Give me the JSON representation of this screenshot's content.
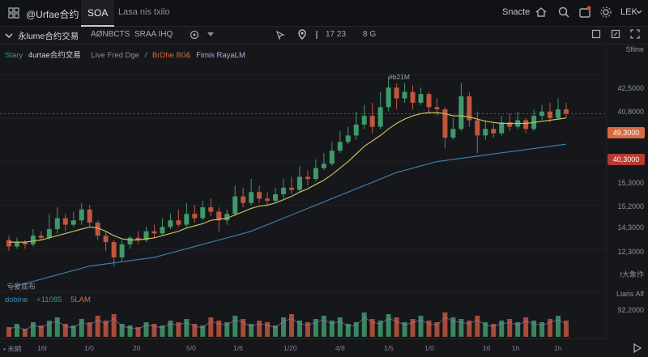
{
  "topbar": {
    "brand": "@Urfae合约",
    "active_tab": "SOA",
    "inactive_tab": "Lasa nis txilo",
    "right_label": "Snacte",
    "user": "LEK"
  },
  "toolbar": {
    "pair": "永lume合约交易",
    "item1": "AØNBCTS",
    "item2": "SRAA IHQ",
    "timer": "17 23",
    "timer2": "8 G"
  },
  "legend": {
    "l1": "Stary",
    "l2": "4urtae合约交易",
    "l3": "Live Fred Dge",
    "sep": "/",
    "l4": "BrDhe B0&",
    "l5": "Fimis RayaLM"
  },
  "price_axis": {
    "top_label": "Sfiine",
    "labels": [
      "42,5000",
      "40,8000",
      "15,3000",
      "15,2000",
      "14,3000",
      "12,3000"
    ],
    "current_price": "49,3000",
    "second_price": "40,3000",
    "note1": "Ⅰ大象作",
    "note2": "Liaris Alf",
    "note3": "92,2000",
    "current_color": "#d9693e",
    "second_color": "#b83a33"
  },
  "chart_data": {
    "type": "candlestick",
    "up_color": "#3f9a6b",
    "down_color": "#c0563d",
    "ma_fast_color": "#c8c05a",
    "ma_slow_color": "#3a7fa8",
    "cursor_label": "#b21M",
    "candles": [
      [
        2.4,
        2.1,
        2.6,
        1.9
      ],
      [
        2.1,
        2.3,
        2.5,
        2.0
      ],
      [
        2.3,
        2.2,
        2.4,
        2.0
      ],
      [
        2.2,
        2.6,
        2.9,
        2.1
      ],
      [
        2.6,
        2.5,
        2.8,
        2.4
      ],
      [
        2.5,
        2.9,
        3.6,
        2.4
      ],
      [
        2.9,
        3.4,
        3.9,
        2.7
      ],
      [
        3.4,
        3.1,
        3.6,
        2.8
      ],
      [
        3.1,
        3.3,
        3.7,
        3.0
      ],
      [
        3.3,
        3.8,
        4.1,
        3.1
      ],
      [
        3.8,
        3.2,
        4.0,
        3.0
      ],
      [
        3.2,
        2.6,
        3.3,
        2.4
      ],
      [
        2.6,
        2.3,
        2.8,
        1.9
      ],
      [
        2.3,
        1.6,
        2.4,
        1.2
      ],
      [
        1.6,
        2.2,
        2.4,
        1.4
      ],
      [
        2.2,
        2.5,
        2.6,
        2.0
      ],
      [
        2.5,
        2.4,
        2.8,
        2.2
      ],
      [
        2.4,
        2.8,
        3.0,
        2.3
      ],
      [
        2.8,
        2.7,
        3.1,
        2.5
      ],
      [
        2.7,
        3.0,
        3.4,
        2.6
      ],
      [
        3.0,
        3.3,
        3.6,
        2.9
      ],
      [
        3.3,
        3.1,
        3.8,
        3.0
      ],
      [
        3.1,
        3.6,
        4.1,
        3.0
      ],
      [
        3.6,
        3.4,
        4.0,
        3.2
      ],
      [
        3.4,
        3.9,
        4.2,
        3.3
      ],
      [
        3.9,
        3.7,
        4.3,
        3.5
      ],
      [
        3.7,
        3.3,
        3.9,
        2.8
      ],
      [
        3.3,
        3.6,
        3.8,
        3.1
      ],
      [
        3.6,
        4.4,
        4.9,
        3.5
      ],
      [
        4.4,
        4.1,
        4.8,
        3.9
      ],
      [
        4.1,
        4.6,
        5.2,
        4.0
      ],
      [
        4.6,
        4.3,
        4.9,
        4.1
      ],
      [
        4.3,
        4.2,
        4.6,
        4.0
      ],
      [
        4.2,
        4.5,
        4.8,
        4.1
      ],
      [
        4.5,
        4.8,
        5.2,
        4.3
      ],
      [
        4.8,
        4.7,
        5.3,
        4.5
      ],
      [
        4.7,
        5.3,
        5.8,
        4.6
      ],
      [
        5.3,
        5.2,
        5.6,
        4.9
      ],
      [
        5.2,
        5.7,
        6.1,
        5.1
      ],
      [
        5.7,
        5.9,
        6.4,
        5.6
      ],
      [
        5.9,
        6.5,
        6.9,
        5.8
      ],
      [
        6.5,
        6.9,
        7.4,
        6.4
      ],
      [
        6.9,
        7.2,
        7.6,
        6.8
      ],
      [
        7.2,
        7.7,
        8.3,
        7.0
      ],
      [
        7.7,
        8.1,
        8.6,
        7.5
      ],
      [
        8.1,
        7.6,
        8.7,
        7.3
      ],
      [
        7.6,
        8.5,
        9.2,
        7.5
      ],
      [
        8.5,
        9.4,
        9.9,
        8.3
      ],
      [
        9.4,
        8.9,
        9.6,
        8.4
      ],
      [
        8.9,
        9.2,
        9.6,
        8.7
      ],
      [
        9.2,
        8.7,
        9.5,
        8.4
      ],
      [
        8.7,
        9.1,
        9.4,
        8.6
      ],
      [
        9.1,
        8.5,
        9.2,
        8.2
      ],
      [
        8.5,
        8.4,
        8.9,
        8.1
      ],
      [
        8.4,
        7.1,
        8.5,
        6.6
      ],
      [
        7.1,
        7.5,
        8.0,
        7.0
      ],
      [
        7.5,
        9.0,
        9.6,
        7.4
      ],
      [
        9.0,
        7.9,
        9.2,
        7.6
      ],
      [
        7.9,
        7.2,
        8.3,
        6.4
      ],
      [
        7.2,
        7.5,
        7.9,
        7.0
      ],
      [
        7.5,
        7.3,
        7.8,
        7.1
      ],
      [
        7.3,
        7.8,
        8.1,
        7.2
      ],
      [
        7.8,
        7.6,
        8.2,
        7.4
      ],
      [
        7.6,
        7.9,
        8.3,
        7.5
      ],
      [
        7.9,
        7.5,
        8.0,
        7.3
      ],
      [
        7.5,
        8.1,
        8.4,
        7.4
      ],
      [
        8.1,
        8.3,
        8.6,
        7.9
      ],
      [
        8.3,
        8.0,
        8.7,
        7.8
      ],
      [
        8.0,
        8.4,
        8.9,
        7.9
      ],
      [
        8.4,
        8.2,
        8.7,
        8.0
      ]
    ],
    "ma_fast": [
      2.3,
      2.3,
      2.3,
      2.35,
      2.4,
      2.5,
      2.6,
      2.7,
      2.8,
      2.9,
      3.0,
      2.95,
      2.8,
      2.6,
      2.45,
      2.4,
      2.4,
      2.45,
      2.5,
      2.6,
      2.7,
      2.8,
      2.95,
      3.05,
      3.15,
      3.3,
      3.35,
      3.4,
      3.55,
      3.7,
      3.85,
      3.95,
      4.0,
      4.1,
      4.25,
      4.4,
      4.6,
      4.75,
      4.95,
      5.15,
      5.4,
      5.7,
      6.0,
      6.35,
      6.7,
      6.95,
      7.2,
      7.5,
      7.75,
      7.95,
      8.1,
      8.2,
      8.25,
      8.25,
      8.2,
      8.1,
      8.1,
      8.05,
      7.95,
      7.85,
      7.8,
      7.75,
      7.75,
      7.75,
      7.75,
      7.8,
      7.85,
      7.9,
      7.95,
      8.0
    ],
    "ma_slow": [
      0.2,
      0.3,
      0.4,
      0.5,
      0.6,
      0.7,
      0.8,
      0.9,
      1.0,
      1.1,
      1.2,
      1.25,
      1.3,
      1.35,
      1.4,
      1.45,
      1.5,
      1.55,
      1.6,
      1.7,
      1.8,
      1.9,
      2.0,
      2.1,
      2.2,
      2.3,
      2.4,
      2.5,
      2.6,
      2.7,
      2.8,
      2.95,
      3.1,
      3.25,
      3.4,
      3.55,
      3.7,
      3.85,
      4.0,
      4.15,
      4.3,
      4.45,
      4.6,
      4.75,
      4.9,
      5.05,
      5.2,
      5.35,
      5.5,
      5.6,
      5.7,
      5.8,
      5.9,
      6.0,
      6.05,
      6.1,
      6.15,
      6.2,
      6.25,
      6.3,
      6.35,
      6.4,
      6.45,
      6.5,
      6.55,
      6.6,
      6.65,
      6.7,
      6.75,
      6.8
    ],
    "volumes": [
      6,
      8,
      5,
      9,
      7,
      10,
      12,
      8,
      7,
      11,
      9,
      13,
      10,
      14,
      8,
      7,
      6,
      9,
      8,
      7,
      10,
      9,
      11,
      8,
      7,
      12,
      10,
      9,
      13,
      11,
      8,
      10,
      9,
      7,
      12,
      14,
      10,
      9,
      11,
      13,
      10,
      12,
      8,
      9,
      15,
      11,
      10,
      14,
      12,
      9,
      11,
      13,
      10,
      9,
      15,
      12,
      11,
      10,
      13,
      9,
      8,
      10,
      11,
      9,
      12,
      10,
      9,
      11,
      13,
      10
    ]
  },
  "volume_legend": {
    "name": "dobine",
    "v1": "+11085",
    "v2": "5LAM"
  },
  "left_note": "亏爱底布",
  "time_axis": [
    "• 未網",
    "16I",
    "1/0",
    "20",
    "5/0",
    "1/6",
    "1/20",
    "4/8",
    "1/5",
    "1/0",
    "16",
    "1h",
    "1h"
  ]
}
